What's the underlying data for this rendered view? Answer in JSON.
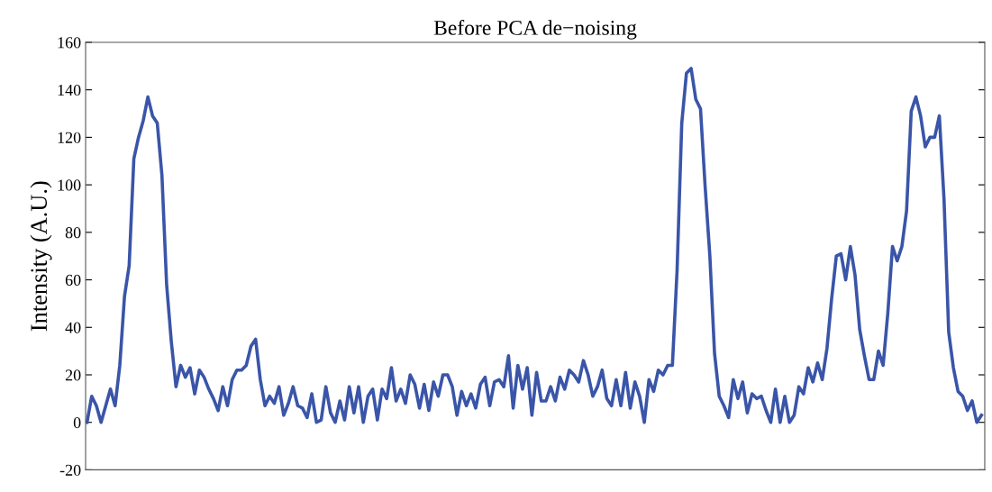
{
  "chart_data": {
    "type": "line",
    "title": "Before PCA de−noising",
    "ylabel": "Intensity (A.U.)",
    "categories": [
      null,
      null,
      null,
      null,
      null,
      null,
      null,
      null,
      null,
      null,
      null,
      null,
      null,
      null,
      null,
      null,
      null,
      null,
      null,
      null,
      null,
      null,
      null,
      null,
      null,
      null,
      null,
      null,
      null,
      null,
      null,
      null,
      null,
      null,
      null,
      null,
      null,
      null,
      null,
      null,
      null,
      null,
      null,
      null,
      null,
      null,
      null,
      null,
      null,
      null,
      null,
      null,
      null,
      null,
      null,
      null,
      null,
      null,
      null,
      null,
      null,
      null,
      null,
      null,
      null,
      null,
      null,
      null,
      null,
      null,
      null,
      null,
      null,
      null,
      null,
      null,
      null,
      null,
      null,
      null,
      null,
      null,
      null,
      null,
      null,
      null,
      null,
      null,
      null,
      null,
      null,
      null,
      null,
      null,
      null,
      null,
      null,
      null,
      null,
      null,
      null,
      null,
      null,
      null,
      null,
      null,
      null,
      null,
      null,
      null,
      null,
      null,
      null,
      null,
      null,
      null,
      null,
      null,
      null,
      null,
      null,
      null,
      null,
      null,
      null,
      null,
      null,
      null,
      null,
      null,
      null,
      null,
      null,
      null,
      null,
      null,
      null,
      null,
      null,
      null,
      null,
      null,
      null,
      null,
      null,
      null,
      null,
      null,
      null,
      null,
      null,
      null,
      null,
      null,
      null,
      null,
      null,
      null,
      null,
      null,
      null,
      null,
      null,
      null,
      null,
      null,
      null,
      null,
      null,
      null,
      null,
      null,
      null,
      null,
      null,
      null,
      null,
      null,
      null,
      null,
      null,
      null,
      null,
      null,
      null,
      null,
      null,
      null,
      null,
      null,
      null,
      null
    ],
    "series": [
      {
        "color": "#3a55a8",
        "values": [
          0,
          11,
          7,
          0,
          7,
          14,
          7,
          24,
          53,
          66,
          111,
          120,
          127,
          137,
          129,
          126,
          104,
          58,
          34,
          15,
          24,
          19,
          23,
          12,
          22,
          19,
          14,
          10,
          5,
          15,
          7,
          18,
          22,
          22,
          24,
          32,
          35,
          18,
          7,
          11,
          8,
          15,
          3,
          8,
          15,
          7,
          6,
          2,
          12,
          0,
          1,
          15,
          4,
          0,
          9,
          1,
          15,
          4,
          15,
          0,
          11,
          14,
          1,
          14,
          10,
          23,
          9,
          14,
          8,
          20,
          16,
          6,
          16,
          5,
          17,
          11,
          20,
          20,
          15,
          3,
          13,
          7,
          12,
          6,
          16,
          19,
          7,
          17,
          18,
          15,
          28,
          6,
          24,
          14,
          23,
          3,
          21,
          9,
          9,
          15,
          9,
          19,
          14,
          22,
          20,
          17,
          26,
          20,
          11,
          15,
          22,
          10,
          7,
          18,
          7,
          21,
          6,
          17,
          11,
          0,
          18,
          13,
          22,
          20,
          24,
          24,
          64,
          126,
          147,
          149,
          136,
          132,
          99,
          70,
          29,
          11,
          7,
          2,
          18,
          10,
          17,
          4,
          12,
          10,
          11,
          5,
          0,
          14,
          0,
          11,
          0,
          3,
          15,
          12,
          23,
          17,
          25,
          18,
          31,
          52,
          70,
          71,
          60,
          74,
          62,
          39,
          28,
          18,
          18,
          30,
          24,
          46,
          74,
          68,
          74,
          89,
          131,
          137,
          129,
          116,
          120,
          120,
          129,
          94,
          38,
          23,
          13,
          11,
          5,
          9,
          0,
          3
        ]
      }
    ],
    "ylim": [
      -20,
      160
    ],
    "yticks": [
      -20,
      0,
      20,
      40,
      60,
      80,
      100,
      120,
      140,
      160
    ],
    "grid": false,
    "tick_labels": "y",
    "legend": false
  }
}
